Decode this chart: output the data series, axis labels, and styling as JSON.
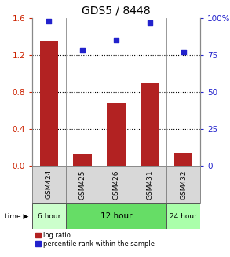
{
  "title": "GDS5 / 8448",
  "samples": [
    "GSM424",
    "GSM425",
    "GSM426",
    "GSM431",
    "GSM432"
  ],
  "log_ratio": [
    1.35,
    0.13,
    0.68,
    0.9,
    0.14
  ],
  "percentile_rank": [
    98,
    78,
    85,
    97,
    77
  ],
  "bar_color": "#b22222",
  "dot_color": "#2222cc",
  "left_ylim": [
    0,
    1.6
  ],
  "left_yticks": [
    0,
    0.4,
    0.8,
    1.2,
    1.6
  ],
  "right_ylim": [
    0,
    100
  ],
  "right_yticks": [
    0,
    25,
    50,
    75,
    100
  ],
  "right_yticklabels": [
    "0",
    "25",
    "50",
    "75",
    "100%"
  ],
  "time_groups": [
    {
      "label": "6 hour",
      "span": [
        0,
        1
      ],
      "color": "#ccffcc"
    },
    {
      "label": "12 hour",
      "span": [
        1,
        4
      ],
      "color": "#66dd66"
    },
    {
      "label": "24 hour",
      "span": [
        4,
        5
      ],
      "color": "#aaffaa"
    }
  ],
  "bar_width": 0.55,
  "left_tick_color": "#cc2200",
  "right_tick_color": "#2222cc",
  "sample_box_color": "#d8d8d8",
  "sample_box_edge": "#888888"
}
